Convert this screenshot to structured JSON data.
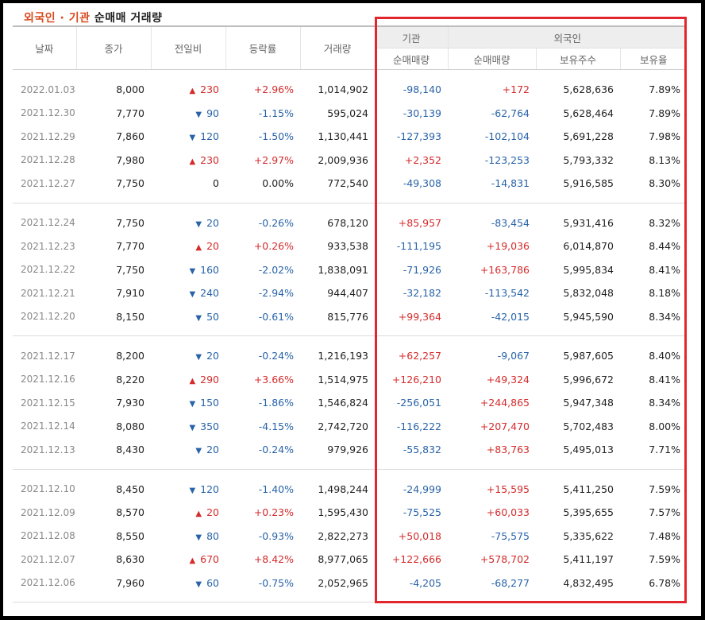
{
  "title": {
    "highlight": "외국인 · 기관",
    "rest": " 순매매 거래량"
  },
  "headers": {
    "date": "날짜",
    "close": "종가",
    "change": "전일비",
    "rate": "등락률",
    "volume": "거래량",
    "institution": "기관",
    "foreign": "외국인",
    "inst_net": "순매매량",
    "foreign_net": "순매매량",
    "foreign_holding": "보유주수",
    "foreign_ratio": "보유율"
  },
  "colors": {
    "up": "#d42b2b",
    "down": "#2863a8",
    "highlight_box": "#e3262e",
    "title_accent": "#d9491d"
  },
  "groups": [
    [
      {
        "date": "2022.01.03",
        "close": "8,000",
        "dir": "up",
        "change": "230",
        "rate": "+2.96%",
        "volume": "1,014,902",
        "inst": "-98,140",
        "frgn": "+172",
        "hold": "5,628,636",
        "ratio": "7.89%"
      },
      {
        "date": "2021.12.30",
        "close": "7,770",
        "dir": "down",
        "change": "90",
        "rate": "-1.15%",
        "volume": "595,024",
        "inst": "-30,139",
        "frgn": "-62,764",
        "hold": "5,628,464",
        "ratio": "7.89%"
      },
      {
        "date": "2021.12.29",
        "close": "7,860",
        "dir": "down",
        "change": "120",
        "rate": "-1.50%",
        "volume": "1,130,441",
        "inst": "-127,393",
        "frgn": "-102,104",
        "hold": "5,691,228",
        "ratio": "7.98%"
      },
      {
        "date": "2021.12.28",
        "close": "7,980",
        "dir": "up",
        "change": "230",
        "rate": "+2.97%",
        "volume": "2,009,936",
        "inst": "+2,352",
        "frgn": "-123,253",
        "hold": "5,793,332",
        "ratio": "8.13%"
      },
      {
        "date": "2021.12.27",
        "close": "7,750",
        "dir": "none",
        "change": "0",
        "rate": "0.00%",
        "volume": "772,540",
        "inst": "-49,308",
        "frgn": "-14,831",
        "hold": "5,916,585",
        "ratio": "8.30%"
      }
    ],
    [
      {
        "date": "2021.12.24",
        "close": "7,750",
        "dir": "down",
        "change": "20",
        "rate": "-0.26%",
        "volume": "678,120",
        "inst": "+85,957",
        "frgn": "-83,454",
        "hold": "5,931,416",
        "ratio": "8.32%"
      },
      {
        "date": "2021.12.23",
        "close": "7,770",
        "dir": "up",
        "change": "20",
        "rate": "+0.26%",
        "volume": "933,538",
        "inst": "-111,195",
        "frgn": "+19,036",
        "hold": "6,014,870",
        "ratio": "8.44%"
      },
      {
        "date": "2021.12.22",
        "close": "7,750",
        "dir": "down",
        "change": "160",
        "rate": "-2.02%",
        "volume": "1,838,091",
        "inst": "-71,926",
        "frgn": "+163,786",
        "hold": "5,995,834",
        "ratio": "8.41%"
      },
      {
        "date": "2021.12.21",
        "close": "7,910",
        "dir": "down",
        "change": "240",
        "rate": "-2.94%",
        "volume": "944,407",
        "inst": "-32,182",
        "frgn": "-113,542",
        "hold": "5,832,048",
        "ratio": "8.18%"
      },
      {
        "date": "2021.12.20",
        "close": "8,150",
        "dir": "down",
        "change": "50",
        "rate": "-0.61%",
        "volume": "815,776",
        "inst": "+99,364",
        "frgn": "-42,015",
        "hold": "5,945,590",
        "ratio": "8.34%"
      }
    ],
    [
      {
        "date": "2021.12.17",
        "close": "8,200",
        "dir": "down",
        "change": "20",
        "rate": "-0.24%",
        "volume": "1,216,193",
        "inst": "+62,257",
        "frgn": "-9,067",
        "hold": "5,987,605",
        "ratio": "8.40%"
      },
      {
        "date": "2021.12.16",
        "close": "8,220",
        "dir": "up",
        "change": "290",
        "rate": "+3.66%",
        "volume": "1,514,975",
        "inst": "+126,210",
        "frgn": "+49,324",
        "hold": "5,996,672",
        "ratio": "8.41%"
      },
      {
        "date": "2021.12.15",
        "close": "7,930",
        "dir": "down",
        "change": "150",
        "rate": "-1.86%",
        "volume": "1,546,824",
        "inst": "-256,051",
        "frgn": "+244,865",
        "hold": "5,947,348",
        "ratio": "8.34%"
      },
      {
        "date": "2021.12.14",
        "close": "8,080",
        "dir": "down",
        "change": "350",
        "rate": "-4.15%",
        "volume": "2,742,720",
        "inst": "-116,222",
        "frgn": "+207,470",
        "hold": "5,702,483",
        "ratio": "8.00%"
      },
      {
        "date": "2021.12.13",
        "close": "8,430",
        "dir": "down",
        "change": "20",
        "rate": "-0.24%",
        "volume": "979,926",
        "inst": "-55,832",
        "frgn": "+83,763",
        "hold": "5,495,013",
        "ratio": "7.71%"
      }
    ],
    [
      {
        "date": "2021.12.10",
        "close": "8,450",
        "dir": "down",
        "change": "120",
        "rate": "-1.40%",
        "volume": "1,498,244",
        "inst": "-24,999",
        "frgn": "+15,595",
        "hold": "5,411,250",
        "ratio": "7.59%"
      },
      {
        "date": "2021.12.09",
        "close": "8,570",
        "dir": "up",
        "change": "20",
        "rate": "+0.23%",
        "volume": "1,595,430",
        "inst": "-75,525",
        "frgn": "+60,033",
        "hold": "5,395,655",
        "ratio": "7.57%"
      },
      {
        "date": "2021.12.08",
        "close": "8,550",
        "dir": "down",
        "change": "80",
        "rate": "-0.93%",
        "volume": "2,822,273",
        "inst": "+50,018",
        "frgn": "-75,575",
        "hold": "5,335,622",
        "ratio": "7.48%"
      },
      {
        "date": "2021.12.07",
        "close": "8,630",
        "dir": "up",
        "change": "670",
        "rate": "+8.42%",
        "volume": "8,977,065",
        "inst": "+122,666",
        "frgn": "+578,702",
        "hold": "5,411,197",
        "ratio": "7.59%"
      },
      {
        "date": "2021.12.06",
        "close": "7,960",
        "dir": "down",
        "change": "60",
        "rate": "-0.75%",
        "volume": "2,052,965",
        "inst": "-4,205",
        "frgn": "-68,277",
        "hold": "4,832,495",
        "ratio": "6.78%"
      }
    ]
  ]
}
